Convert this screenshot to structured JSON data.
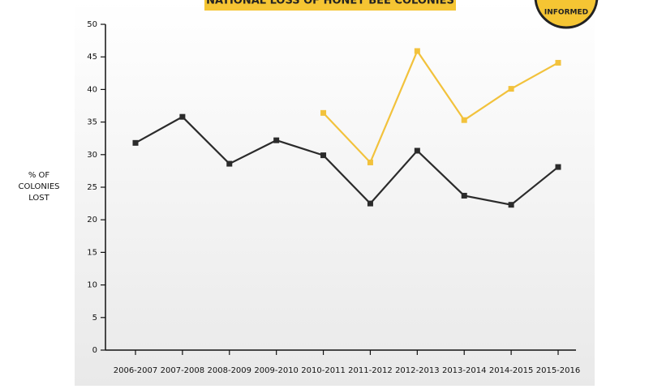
{
  "chart_data": {
    "type": "line",
    "title": "NATIONAL LOSS OF HONEY BEE COLONIES",
    "ylabel": "% OF COLONIES LOST",
    "categories": [
      "2006-2007",
      "2007-2008",
      "2008-2009",
      "2009-2010",
      "2010-2011",
      "2011-2012",
      "2012-2013",
      "2013-2014",
      "2014-2015",
      "2015-2016"
    ],
    "series": [
      {
        "color": "#2b2b2b",
        "values": [
          31.8,
          35.8,
          28.6,
          32.2,
          29.9,
          22.5,
          30.6,
          23.7,
          22.3,
          28.1
        ]
      },
      {
        "color": "#f2c23c",
        "values": [
          null,
          null,
          null,
          null,
          36.4,
          28.8,
          45.9,
          35.3,
          40.1,
          44.1
        ]
      }
    ],
    "ylim": [
      0,
      50
    ],
    "yticks": [
      0,
      5,
      10,
      15,
      20,
      25,
      30,
      35,
      40,
      45,
      50
    ],
    "grid": false
  },
  "logo": {
    "text": "INFORMED"
  }
}
